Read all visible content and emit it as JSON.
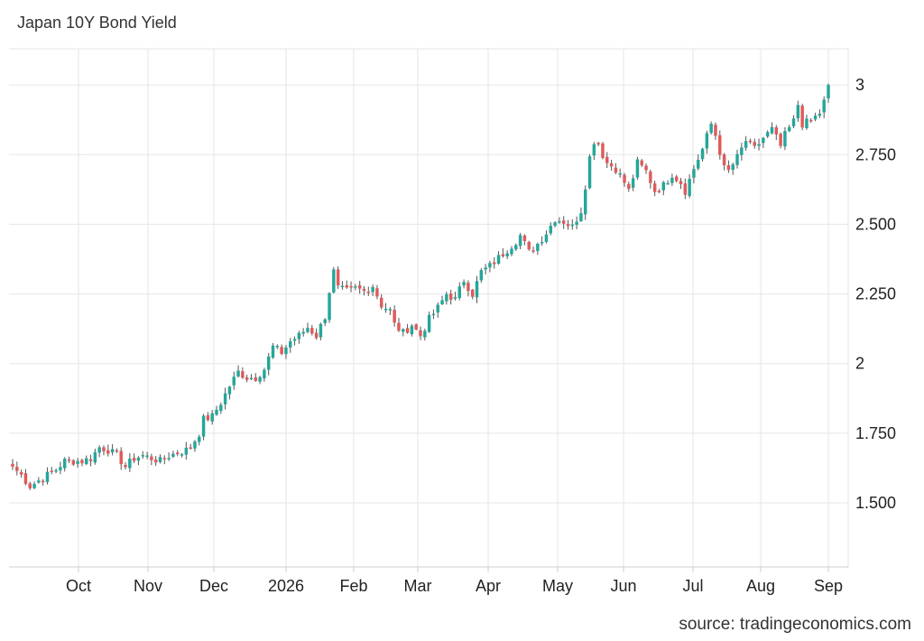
{
  "title": "Japan 10Y Bond Yield",
  "source": "source: tradingeconomics.com",
  "colors": {
    "up": "#26a69a",
    "down": "#e05a5a",
    "grid": "#e6e6e6",
    "axis": "#cfcfcf"
  },
  "chart_data": {
    "type": "candlestick",
    "title": "Japan 10Y Bond Yield",
    "ylim": [
      1.27,
      3.13
    ],
    "y_ticks": [
      1.5,
      1.75,
      2,
      2.25,
      2.5,
      2.75,
      3
    ],
    "y_tick_labels": [
      "1.500",
      "1.750",
      "2",
      "2.250",
      "2.500",
      "2.750",
      "3"
    ],
    "x_ticks": [
      "Oct",
      "Nov",
      "Dec",
      "2026",
      "Feb",
      "Mar",
      "Apr",
      "May",
      "Jun",
      "Jul",
      "Aug",
      "Sep"
    ],
    "grid": true,
    "close_anchors": [
      [
        0,
        1.63
      ],
      [
        2,
        1.6
      ],
      [
        4,
        1.56
      ],
      [
        6,
        1.58
      ],
      [
        8,
        1.6
      ],
      [
        10,
        1.62
      ],
      [
        12,
        1.65
      ],
      [
        14,
        1.65
      ],
      [
        16,
        1.65
      ],
      [
        18,
        1.66
      ],
      [
        20,
        1.7
      ],
      [
        22,
        1.69
      ],
      [
        24,
        1.67
      ],
      [
        26,
        1.63
      ],
      [
        28,
        1.66
      ],
      [
        30,
        1.67
      ],
      [
        32,
        1.66
      ],
      [
        34,
        1.65
      ],
      [
        36,
        1.67
      ],
      [
        38,
        1.68
      ],
      [
        40,
        1.69
      ],
      [
        41,
        1.7
      ],
      [
        43,
        1.75
      ],
      [
        44,
        1.8
      ],
      [
        46,
        1.81
      ],
      [
        48,
        1.86
      ],
      [
        50,
        1.92
      ],
      [
        52,
        1.97
      ],
      [
        54,
        1.95
      ],
      [
        56,
        1.95
      ],
      [
        58,
        1.98
      ],
      [
        60,
        2.06
      ],
      [
        62,
        2.04
      ],
      [
        64,
        2.08
      ],
      [
        66,
        2.1
      ],
      [
        68,
        2.13
      ],
      [
        70,
        2.1
      ],
      [
        72,
        2.17
      ],
      [
        73,
        2.26
      ],
      [
        74,
        2.33
      ],
      [
        75,
        2.27
      ],
      [
        77,
        2.26
      ],
      [
        79,
        2.27
      ],
      [
        81,
        2.26
      ],
      [
        83,
        2.28
      ],
      [
        85,
        2.21
      ],
      [
        87,
        2.19
      ],
      [
        88,
        2.14
      ],
      [
        90,
        2.11
      ],
      [
        92,
        2.14
      ],
      [
        94,
        2.1
      ],
      [
        96,
        2.16
      ],
      [
        98,
        2.2
      ],
      [
        100,
        2.25
      ],
      [
        102,
        2.23
      ],
      [
        104,
        2.3
      ],
      [
        106,
        2.25
      ],
      [
        108,
        2.33
      ],
      [
        110,
        2.35
      ],
      [
        112,
        2.38
      ],
      [
        114,
        2.41
      ],
      [
        116,
        2.44
      ],
      [
        117,
        2.46
      ],
      [
        119,
        2.4
      ],
      [
        121,
        2.43
      ],
      [
        123,
        2.47
      ],
      [
        125,
        2.52
      ],
      [
        127,
        2.51
      ],
      [
        129,
        2.49
      ],
      [
        131,
        2.55
      ],
      [
        132,
        2.64
      ],
      [
        133,
        2.74
      ],
      [
        134,
        2.8
      ],
      [
        135,
        2.79
      ],
      [
        136,
        2.75
      ],
      [
        137,
        2.72
      ],
      [
        139,
        2.7
      ],
      [
        141,
        2.65
      ],
      [
        142,
        2.62
      ],
      [
        144,
        2.72
      ],
      [
        146,
        2.69
      ],
      [
        148,
        2.62
      ],
      [
        150,
        2.64
      ],
      [
        152,
        2.68
      ],
      [
        154,
        2.65
      ],
      [
        155,
        2.62
      ],
      [
        157,
        2.7
      ],
      [
        159,
        2.77
      ],
      [
        161,
        2.86
      ],
      [
        162,
        2.82
      ],
      [
        163,
        2.76
      ],
      [
        164,
        2.7
      ],
      [
        165,
        2.69
      ],
      [
        167,
        2.74
      ],
      [
        169,
        2.8
      ],
      [
        171,
        2.77
      ],
      [
        173,
        2.81
      ],
      [
        175,
        2.84
      ],
      [
        177,
        2.78
      ],
      [
        178,
        2.82
      ],
      [
        180,
        2.87
      ],
      [
        181,
        2.93
      ],
      [
        182,
        2.86
      ],
      [
        184,
        2.87
      ],
      [
        186,
        2.9
      ],
      [
        187,
        2.94
      ],
      [
        188,
        3.0
      ]
    ]
  }
}
